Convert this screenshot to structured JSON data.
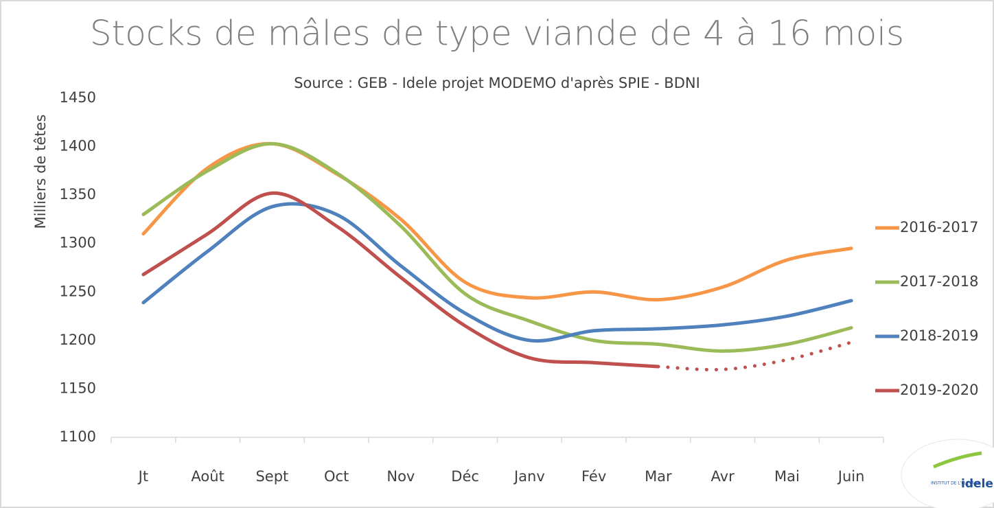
{
  "chart_data": {
    "type": "line",
    "title": "Stocks de mâles de type viande de 4 à 16 mois",
    "subtitle": "Source : GEB - Idele projet MODEMO d'après SPIE - BDNI",
    "y_label": "Milliers de têtes",
    "categories": [
      "Jt",
      "Août",
      "Sept",
      "Oct",
      "Nov",
      "Déc",
      "Janv",
      "Fév",
      "Mar",
      "Avr",
      "Mai",
      "Juin"
    ],
    "series": [
      {
        "name": "2016-2017",
        "color": "#f79646",
        "values": [
          1310,
          1378,
          1403,
          1372,
          1325,
          1260,
          1244,
          1250,
          1242,
          1255,
          1283,
          1295
        ]
      },
      {
        "name": "2017-2018",
        "color": "#9bbb59",
        "values": [
          1330,
          1375,
          1403,
          1373,
          1318,
          1248,
          1220,
          1200,
          1196,
          1189,
          1196,
          1213
        ]
      },
      {
        "name": "2018-2019",
        "color": "#4f81bd",
        "values": [
          1239,
          1292,
          1338,
          1330,
          1277,
          1228,
          1200,
          1210,
          1212,
          1216,
          1225,
          1241
        ]
      },
      {
        "name": "2019-2020",
        "color": "#c0504d",
        "values": [
          1268,
          1310,
          1352,
          1318,
          1265,
          1215,
          1182,
          1177,
          1173,
          1170,
          1180,
          1198
        ],
        "dotted_from": "Mar"
      }
    ],
    "ylim": [
      1100,
      1450
    ],
    "yticks": [
      1100,
      1150,
      1200,
      1250,
      1300,
      1350,
      1400,
      1450
    ],
    "grid": false,
    "legend": "right",
    "logo": {
      "small": "INSTITUT DE L'ELEVAGE",
      "brand": "idele"
    }
  }
}
